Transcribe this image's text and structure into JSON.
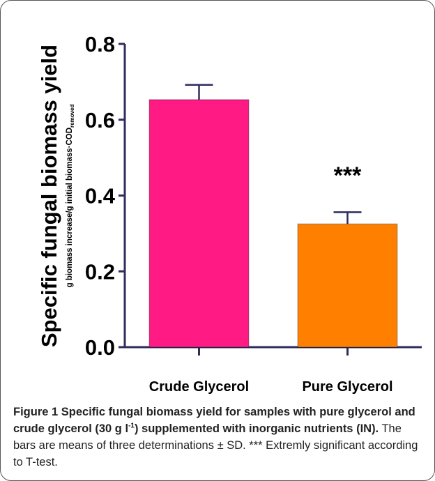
{
  "chart_data": {
    "type": "bar",
    "ylabel": "Specific fungal biomass yield",
    "ylabel_unit": "g biomass increase/g initial biomass·COD",
    "ylabel_unit_subscript": "removed",
    "categories": [
      "Crude Glycerol",
      "Pure Glycerol"
    ],
    "values": [
      0.653,
      0.325
    ],
    "errors": [
      0.039,
      0.031
    ],
    "colors": [
      "#ff1a84",
      "#ff8000"
    ],
    "axis_color": "#2e2d5e",
    "ylim": [
      0,
      0.8
    ],
    "yticks": [
      {
        "value": 0,
        "label": "0.0"
      },
      0.2,
      0.4,
      0.6,
      0.8
    ],
    "annotation": "***"
  },
  "caption": {
    "bold_1": "Figure 1 Specific fungal biomass yield for samples with pure glycerol and crude glycerol (30 g l",
    "superscript": "-1",
    "bold_2": ") supplemented with inorganic nutrients (IN).",
    "text": "The bars are means of three determinations ± SD. *** Extremly significant according to T-test."
  }
}
